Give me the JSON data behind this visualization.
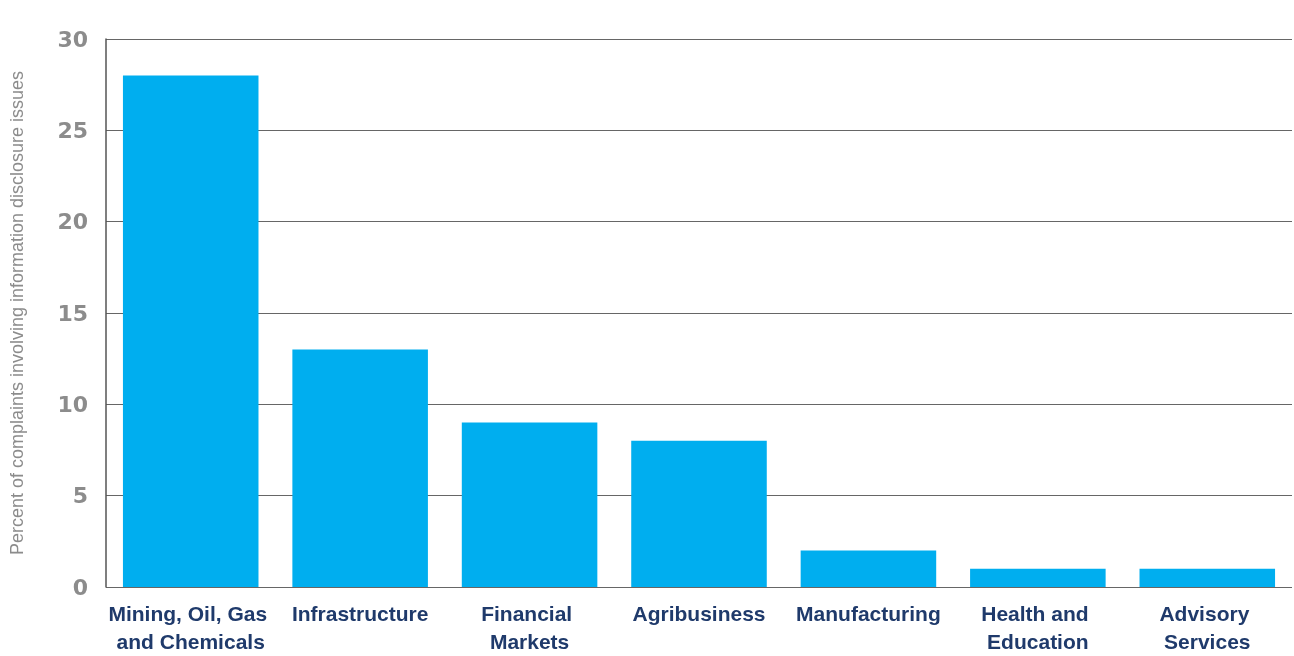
{
  "chart_data": {
    "type": "bar",
    "ylabel": "Percent of complaints involving information disclosure issues",
    "categories": [
      "Mining, Oil, Gas and Chemicals",
      "Infrastructure",
      "Financial Markets",
      "Agribusiness",
      "Manufacturing",
      "Health and Education",
      "Advisory Services"
    ],
    "values": [
      28,
      13,
      9,
      8,
      2,
      1,
      1
    ],
    "color": "#00aeef",
    "ylim": [
      0,
      30
    ],
    "yticks": [
      0,
      5,
      10,
      15,
      20,
      25,
      30
    ],
    "grid": "y"
  }
}
